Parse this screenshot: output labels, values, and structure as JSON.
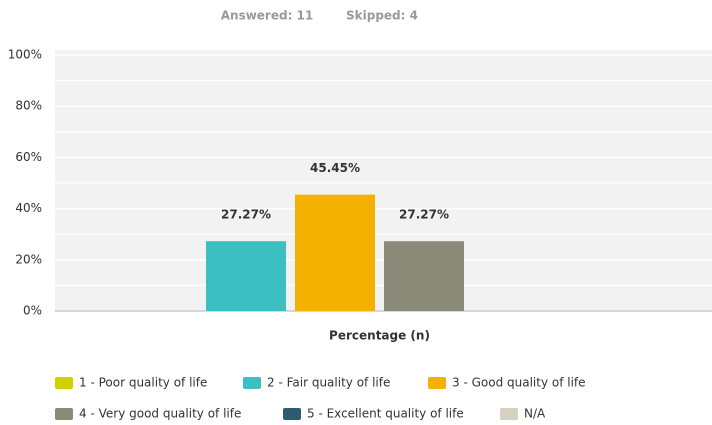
{
  "chart_data": {
    "type": "bar",
    "header": [
      "Answered: 11",
      "Skipped: 4"
    ],
    "categories": [
      "Percentage (n)"
    ],
    "series": [
      {
        "name": "1 - Poor quality of life",
        "color": "#d0d000",
        "values": [
          0
        ],
        "value_labels": [
          null
        ]
      },
      {
        "name": "2 - Fair quality of life",
        "color": "#3bbfc0",
        "values": [
          27.27
        ],
        "value_labels": [
          "27.27%"
        ]
      },
      {
        "name": "3 - Good quality of life",
        "color": "#f5b100",
        "values": [
          45.45
        ],
        "value_labels": [
          "45.45%"
        ]
      },
      {
        "name": "4 - Very good quality of life",
        "color": "#8a8a78",
        "values": [
          27.27
        ],
        "value_labels": [
          "27.27%"
        ]
      },
      {
        "name": "5 - Excellent quality of life",
        "color": "#2d5c70",
        "values": [
          0
        ],
        "value_labels": [
          null
        ]
      },
      {
        "name": "N/A",
        "color": "#d4d1c0",
        "values": [
          0
        ],
        "value_labels": [
          null
        ]
      }
    ],
    "ylim": [
      0,
      100
    ],
    "yticks": [
      {
        "value": 0,
        "label": "0%"
      },
      {
        "value": 20,
        "label": "20%"
      },
      {
        "value": 40,
        "label": "40%"
      },
      {
        "value": 60,
        "label": "60%"
      },
      {
        "value": 80,
        "label": "80%"
      },
      {
        "value": 100,
        "label": "100%"
      }
    ],
    "minor_yticks": [
      10,
      30,
      50,
      70,
      90
    ],
    "grid": true
  }
}
